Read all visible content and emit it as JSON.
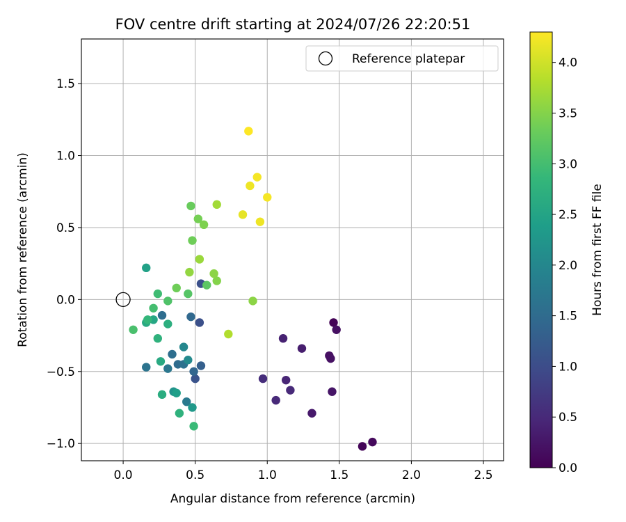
{
  "chart_data": {
    "type": "scatter",
    "title": "FOV centre drift starting at 2024/07/26 22:20:51",
    "xlabel": "Angular distance from reference (arcmin)",
    "ylabel": "Rotation from reference (arcmin)",
    "xlim": [
      -0.29,
      2.64
    ],
    "ylim": [
      -1.12,
      1.81
    ],
    "xticks": [
      0.0,
      0.5,
      1.0,
      1.5,
      2.0,
      2.5
    ],
    "xtick_labels": [
      "0.0",
      "0.5",
      "1.0",
      "1.5",
      "2.0",
      "2.5"
    ],
    "yticks": [
      -1.0,
      -0.5,
      0.0,
      0.5,
      1.0,
      1.5
    ],
    "ytick_labels": [
      "−1.0",
      "−0.5",
      "0.0",
      "0.5",
      "1.0",
      "1.5"
    ],
    "grid": true,
    "legend": {
      "location": "upper right",
      "entries": [
        "Reference platepar"
      ]
    },
    "reference_point": {
      "x": 0.0,
      "y": 0.0,
      "marker": "open-circle"
    },
    "colormap": "viridis",
    "colorbar": {
      "label": "Hours from first FF file",
      "range": [
        0.0,
        4.3
      ],
      "ticks": [
        0.0,
        0.5,
        1.0,
        1.5,
        2.0,
        2.5,
        3.0,
        3.5,
        4.0
      ],
      "tick_labels": [
        "0.0",
        "0.5",
        "1.0",
        "1.5",
        "2.0",
        "2.5",
        "3.0",
        "3.5",
        "4.0"
      ]
    },
    "points": [
      {
        "x": 1.46,
        "y": -0.16,
        "c": 0.02
      },
      {
        "x": 1.48,
        "y": -0.21,
        "c": 0.18
      },
      {
        "x": 1.66,
        "y": -1.02,
        "c": 0.05
      },
      {
        "x": 1.73,
        "y": -0.99,
        "c": 0.1
      },
      {
        "x": 1.43,
        "y": -0.39,
        "c": 0.18
      },
      {
        "x": 1.44,
        "y": -0.41,
        "c": 0.2
      },
      {
        "x": 1.45,
        "y": -0.64,
        "c": 0.25
      },
      {
        "x": 1.31,
        "y": -0.79,
        "c": 0.3
      },
      {
        "x": 1.24,
        "y": -0.34,
        "c": 0.35
      },
      {
        "x": 1.11,
        "y": -0.27,
        "c": 0.4
      },
      {
        "x": 1.13,
        "y": -0.56,
        "c": 0.45
      },
      {
        "x": 1.16,
        "y": -0.63,
        "c": 0.5
      },
      {
        "x": 1.06,
        "y": -0.7,
        "c": 0.5
      },
      {
        "x": 0.97,
        "y": -0.55,
        "c": 0.55
      },
      {
        "x": 0.54,
        "y": 0.11,
        "c": 1.05
      },
      {
        "x": 0.53,
        "y": -0.16,
        "c": 1.05
      },
      {
        "x": 0.5,
        "y": -0.55,
        "c": 1.1
      },
      {
        "x": 0.54,
        "y": -0.46,
        "c": 1.3
      },
      {
        "x": 0.49,
        "y": -0.5,
        "c": 1.4
      },
      {
        "x": 0.47,
        "y": -0.12,
        "c": 1.45
      },
      {
        "x": 0.38,
        "y": -0.45,
        "c": 1.5
      },
      {
        "x": 0.27,
        "y": -0.11,
        "c": 1.55
      },
      {
        "x": 0.34,
        "y": -0.38,
        "c": 1.55
      },
      {
        "x": 0.42,
        "y": -0.45,
        "c": 1.6
      },
      {
        "x": 0.16,
        "y": -0.47,
        "c": 1.65
      },
      {
        "x": 0.31,
        "y": -0.48,
        "c": 1.7
      },
      {
        "x": 0.44,
        "y": -0.71,
        "c": 1.75
      },
      {
        "x": 0.42,
        "y": -0.33,
        "c": 2.0
      },
      {
        "x": 0.45,
        "y": -0.42,
        "c": 2.05
      },
      {
        "x": 0.35,
        "y": -0.64,
        "c": 2.2
      },
      {
        "x": 0.48,
        "y": -0.75,
        "c": 2.3
      },
      {
        "x": 0.37,
        "y": -0.65,
        "c": 2.4
      },
      {
        "x": 0.16,
        "y": 0.22,
        "c": 2.45
      },
      {
        "x": 0.21,
        "y": -0.14,
        "c": 2.55
      },
      {
        "x": 0.16,
        "y": -0.16,
        "c": 2.6
      },
      {
        "x": 0.26,
        "y": -0.43,
        "c": 2.6
      },
      {
        "x": 0.27,
        "y": -0.66,
        "c": 2.65
      },
      {
        "x": 0.31,
        "y": -0.17,
        "c": 2.7
      },
      {
        "x": 0.39,
        "y": -0.79,
        "c": 2.75
      },
      {
        "x": 0.24,
        "y": -0.27,
        "c": 2.75
      },
      {
        "x": 0.17,
        "y": -0.14,
        "c": 2.85
      },
      {
        "x": 0.49,
        "y": -0.88,
        "c": 2.9
      },
      {
        "x": 0.24,
        "y": 0.04,
        "c": 2.95
      },
      {
        "x": 0.21,
        "y": -0.06,
        "c": 3.0
      },
      {
        "x": 0.07,
        "y": -0.21,
        "c": 3.05
      },
      {
        "x": 0.31,
        "y": -0.01,
        "c": 3.1
      },
      {
        "x": 0.45,
        "y": 0.04,
        "c": 3.15
      },
      {
        "x": 0.58,
        "y": 0.1,
        "c": 3.2
      },
      {
        "x": 0.47,
        "y": 0.65,
        "c": 3.3
      },
      {
        "x": 0.37,
        "y": 0.08,
        "c": 3.35
      },
      {
        "x": 0.48,
        "y": 0.41,
        "c": 3.35
      },
      {
        "x": 0.52,
        "y": 0.56,
        "c": 3.4
      },
      {
        "x": 0.56,
        "y": 0.52,
        "c": 3.45
      },
      {
        "x": 0.65,
        "y": 0.13,
        "c": 3.5
      },
      {
        "x": 0.9,
        "y": -0.01,
        "c": 3.55
      },
      {
        "x": 0.63,
        "y": 0.18,
        "c": 3.55
      },
      {
        "x": 0.46,
        "y": 0.19,
        "c": 3.6
      },
      {
        "x": 0.53,
        "y": 0.28,
        "c": 3.65
      },
      {
        "x": 0.65,
        "y": 0.66,
        "c": 3.7
      },
      {
        "x": 0.73,
        "y": -0.24,
        "c": 3.8
      },
      {
        "x": 0.83,
        "y": 0.59,
        "c": 4.15
      },
      {
        "x": 0.95,
        "y": 0.54,
        "c": 4.2
      },
      {
        "x": 0.88,
        "y": 0.79,
        "c": 4.2
      },
      {
        "x": 1.0,
        "y": 0.71,
        "c": 4.25
      },
      {
        "x": 0.93,
        "y": 0.85,
        "c": 4.25
      },
      {
        "x": 0.87,
        "y": 1.17,
        "c": 4.3
      }
    ]
  }
}
